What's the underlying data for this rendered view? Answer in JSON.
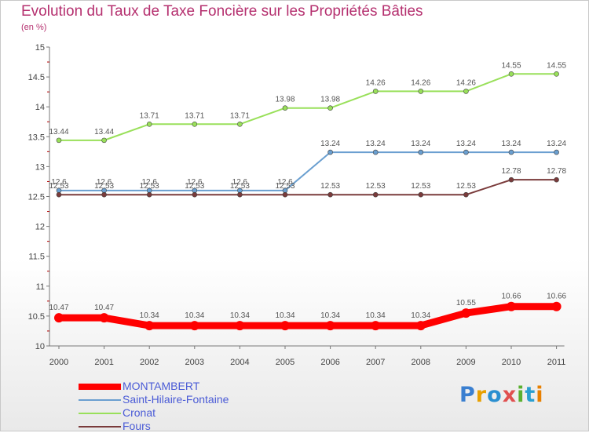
{
  "title": "Evolution du Taux de Taxe Foncière sur les Propriétés Bâties",
  "subtitle": "(en %)",
  "logo": "Proxiti",
  "chart_data": {
    "type": "line",
    "x": [
      "2000",
      "2001",
      "2002",
      "2003",
      "2004",
      "2005",
      "2006",
      "2007",
      "2008",
      "2009",
      "2010",
      "2011"
    ],
    "ylim": [
      10,
      15
    ],
    "yticks": [
      "10",
      "10.5",
      "11",
      "11.5",
      "12",
      "12.5",
      "13",
      "13.5",
      "14",
      "14.5",
      "15"
    ],
    "grid": false,
    "legend_position": "bottom-left",
    "series": [
      {
        "name": "MONTAMBERT",
        "color": "#ff0000",
        "values": [
          10.47,
          10.47,
          10.34,
          10.34,
          10.34,
          10.34,
          10.34,
          10.34,
          10.34,
          10.55,
          10.66,
          10.66
        ],
        "labels": [
          "10.47",
          "10.47",
          "10.34",
          "10.34",
          "10.34",
          "10.34",
          "10.34",
          "10.34",
          "10.34",
          "10.55",
          "10.66",
          "10.66"
        ]
      },
      {
        "name": "Saint-Hilaire-Fontaine",
        "color": "#6a9fd0",
        "values": [
          12.6,
          12.6,
          12.6,
          12.6,
          12.6,
          12.6,
          13.24,
          13.24,
          13.24,
          13.24,
          13.24,
          13.24
        ],
        "labels": [
          "12.6",
          "12.6",
          "12.6",
          "12.6",
          "12.6",
          "12.6",
          "13.24",
          "13.24",
          "13.24",
          "13.24",
          "13.24",
          "13.24"
        ]
      },
      {
        "name": "Cronat",
        "color": "#99e05a",
        "values": [
          13.44,
          13.44,
          13.71,
          13.71,
          13.71,
          13.98,
          13.98,
          14.26,
          14.26,
          14.26,
          14.55,
          14.55
        ],
        "labels": [
          "13.44",
          "13.44",
          "13.71",
          "13.71",
          "13.71",
          "13.98",
          "13.98",
          "14.26",
          "14.26",
          "14.26",
          "14.55",
          "14.55"
        ]
      },
      {
        "name": "Fours",
        "color": "#7a3b3b",
        "values": [
          12.53,
          12.53,
          12.53,
          12.53,
          12.53,
          12.53,
          12.53,
          12.53,
          12.53,
          12.53,
          12.78,
          12.78
        ],
        "labels": [
          "12.53",
          "12.53",
          "12.53",
          "12.53",
          "12.53",
          "12.53",
          "12.53",
          "12.53",
          "12.53",
          "12.53",
          "12.78",
          "12.78"
        ]
      }
    ]
  }
}
